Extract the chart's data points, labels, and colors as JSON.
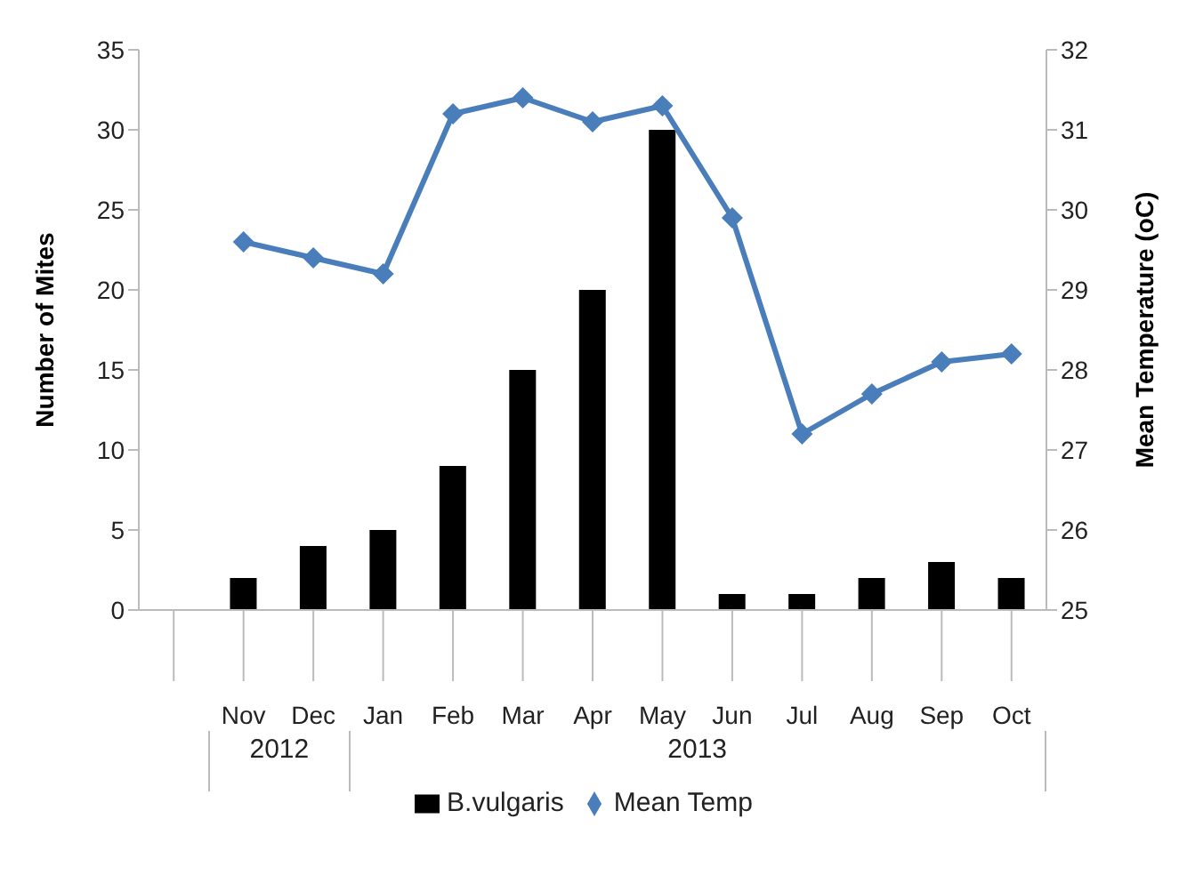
{
  "chart_data": {
    "type": "bar",
    "categories": [
      null,
      "Nov",
      "Dec",
      "Jan",
      "Feb",
      "Mar",
      "Apr",
      "May",
      "Jun",
      "Jul",
      "Aug",
      "Sep",
      "Oct"
    ],
    "series": [
      {
        "name": "B.vulgaris",
        "color": "#000000",
        "values": [
          null,
          2,
          4,
          5,
          9,
          15,
          20,
          30,
          1,
          1,
          2,
          3,
          2
        ]
      },
      {
        "name": "Mean Temp",
        "type": "line",
        "axis": "y2",
        "color": "#4a7ebb",
        "marker": "diamond",
        "values": [
          null,
          29.6,
          29.4,
          29.2,
          31.2,
          31.4,
          31.1,
          31.3,
          29.9,
          27.2,
          27.7,
          28.1,
          28.2
        ]
      }
    ],
    "ylabel": "Number of Mites",
    "y2label": "Mean Temperature (oC)",
    "ylim": [
      0,
      35
    ],
    "yticks": [
      0,
      5,
      10,
      15,
      20,
      25,
      30,
      35
    ],
    "y2lim": [
      25,
      32
    ],
    "y2ticks": [
      25,
      26,
      27,
      28,
      29,
      30,
      31,
      32
    ],
    "annotations": [
      "2012",
      "2013"
    ],
    "legend": "bottom",
    "grid": false
  }
}
